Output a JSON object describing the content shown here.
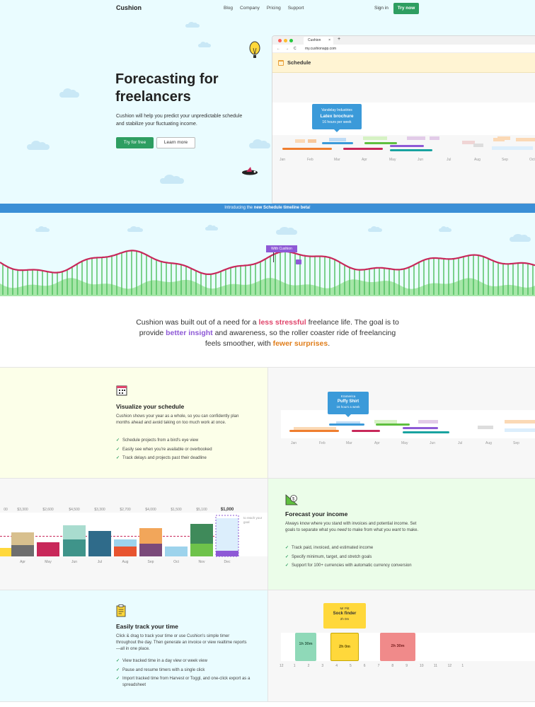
{
  "nav": {
    "brand": "Cushion",
    "links": [
      "Blog",
      "Company",
      "Pricing",
      "Support"
    ],
    "signin": "Sign in",
    "try_now": "Try now"
  },
  "hero": {
    "title_line1": "Forecasting for",
    "title_line2": "freelancers",
    "subtitle": "Cushion will help you predict your unpredictable schedule and stabilize your fluctuating income.",
    "cta_primary": "Try for free",
    "cta_secondary": "Learn more"
  },
  "browser": {
    "tab_title": "Cushion",
    "tab_close": "×",
    "new_tab": "+",
    "url": "my.cushionapp.com",
    "nav_buttons": [
      "←",
      "→",
      "C"
    ],
    "section_title": "Schedule",
    "tooltip": {
      "client": "Vandelay Industries",
      "project": "Latex brochure",
      "detail": "16 hours per week"
    },
    "months": [
      "Jan",
      "Feb",
      "Mar",
      "Apr",
      "May",
      "Jun",
      "Jul",
      "Aug",
      "Sep",
      "Oct"
    ]
  },
  "banner": {
    "prefix": "Introducing the ",
    "highlight": "new Schedule timeline beta",
    "suffix": "!"
  },
  "wave": {
    "flag_label": "With Cushion"
  },
  "mission": {
    "p1": "Cushion was built out of a need for a ",
    "h1": "less stressful",
    "p2": " freelance life. The goal is to provide ",
    "h2": "better insight",
    "p3": " and awareness, so the roller coaster ride of freelancing feels smoother, with ",
    "h3": "fewer surprises",
    "p4": "."
  },
  "feature_schedule": {
    "title": "Visualize your schedule",
    "desc": "Cushion shows your year as a whole, so you can confidently plan months ahead and avoid taking on too much work at once.",
    "bullets": [
      "Schedule projects from a bird's eye view",
      "Easily see when you're available or overbooked",
      "Track delays and projects past their deadline"
    ],
    "check": "✓",
    "tooltip": {
      "client": "Kramerica",
      "project": "Puffy Shirt",
      "detail": "16 hours a week"
    },
    "months": [
      "Jan",
      "Feb",
      "Mar",
      "Apr",
      "May",
      "Jun",
      "Jul",
      "Aug",
      "Sep"
    ]
  },
  "feature_income": {
    "title": "Forecast your income",
    "desc_1": "Always know where you stand with invoices and potential income. Set goals to separate what you ",
    "desc_need": "need",
    "desc_2": " to make from what you ",
    "desc_want": "want",
    "desc_3": " to make.",
    "bullets": [
      "Track paid, invoiced, and estimated income",
      "Specify minimum, target, and stretch goals",
      "Support for 100+ currencies with automatic currency conversion"
    ],
    "goal_note": "to reach your goal",
    "chart_labels": [
      "00",
      "$3,300",
      "$2,600",
      "$4,500",
      "$3,300",
      "$2,700",
      "$4,000",
      "$1,500",
      "$5,100",
      "$1,000"
    ],
    "chart_months": [
      "",
      "Apr",
      "May",
      "Jun",
      "Jul",
      "Aug",
      "Sep",
      "Oct",
      "Nov",
      "Dec"
    ]
  },
  "feature_time": {
    "title": "Easily track your time",
    "desc": "Click & drag to track your time or use Cushion's simple timer throughout the day. Then generate an invoice or view realtime reports—all in one place.",
    "bullets": [
      "View tracked time in a day view or week view",
      "Pause and resume timers with a single click",
      "Import tracked time from Harvest or Toggl, and one-click export as a spreadsheet"
    ],
    "tooltip": {
      "client": "Mr Pitt",
      "project": "Sock finder",
      "detail": "2h 0m"
    },
    "blocks": [
      {
        "label": "1h 30m"
      },
      {
        "label": "2h 0m"
      },
      {
        "label": "2h 30m"
      }
    ],
    "hours": [
      "12",
      "1",
      "2",
      "3",
      "4",
      "5",
      "6",
      "7",
      "8",
      "9",
      "10",
      "11",
      "12",
      "1"
    ]
  },
  "colors": {
    "green": "#2e9e61",
    "blue": "#3b8fd6",
    "wave_red": "#c8285a",
    "wave_green": "#5cc96a"
  }
}
